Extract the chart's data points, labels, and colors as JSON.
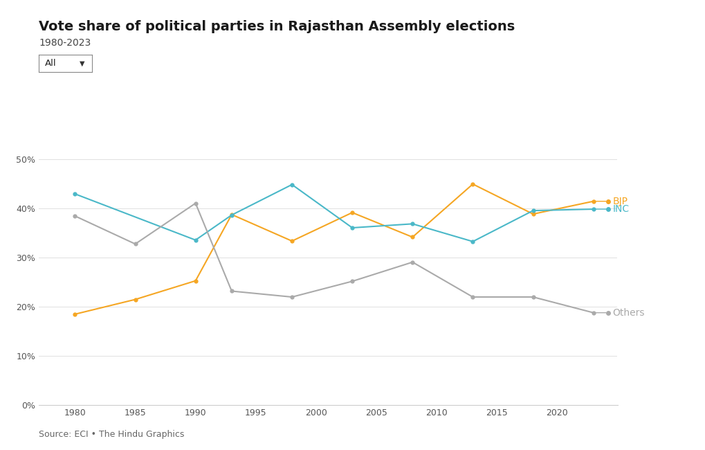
{
  "title": "Vote share of political parties in Rajasthan Assembly elections",
  "subtitle": "1980-2023",
  "dropdown_label": "All",
  "source": "Source: ECI • The Hindu Graphics",
  "years": [
    1980,
    1985,
    1990,
    1993,
    1998,
    2003,
    2008,
    2013,
    2018,
    2023
  ],
  "BJP": [
    0.185,
    0.215,
    0.253,
    0.388,
    0.334,
    0.392,
    0.342,
    0.45,
    0.389,
    0.415
  ],
  "INC_years": [
    1980,
    1990,
    1993,
    1998,
    2003,
    2008,
    2013,
    2018,
    2023
  ],
  "INC_values": [
    0.43,
    0.336,
    0.387,
    0.449,
    0.361,
    0.369,
    0.333,
    0.396,
    0.399
  ],
  "BJP_color": "#f5a623",
  "INC_color": "#4ab8c8",
  "Others_color": "#aaaaaa",
  "Others_years": [
    1980,
    1985,
    1990,
    1993,
    1998,
    2003,
    2008,
    2013,
    2018,
    2023
  ],
  "Others_values": [
    0.385,
    0.328,
    0.411,
    0.232,
    0.22,
    0.252,
    0.291,
    0.22,
    0.22,
    0.188
  ],
  "ylim": [
    0,
    0.55
  ],
  "yticks": [
    0.0,
    0.1,
    0.2,
    0.3,
    0.4,
    0.5
  ],
  "ytick_labels": [
    "0%",
    "10%",
    "20%",
    "30%",
    "40%",
    "50%"
  ],
  "xticks": [
    1980,
    1985,
    1990,
    1995,
    2000,
    2005,
    2010,
    2015,
    2020
  ],
  "background_color": "#ffffff",
  "title_fontsize": 14,
  "subtitle_fontsize": 10,
  "axis_fontsize": 9,
  "legend_fontsize": 10,
  "source_fontsize": 9
}
